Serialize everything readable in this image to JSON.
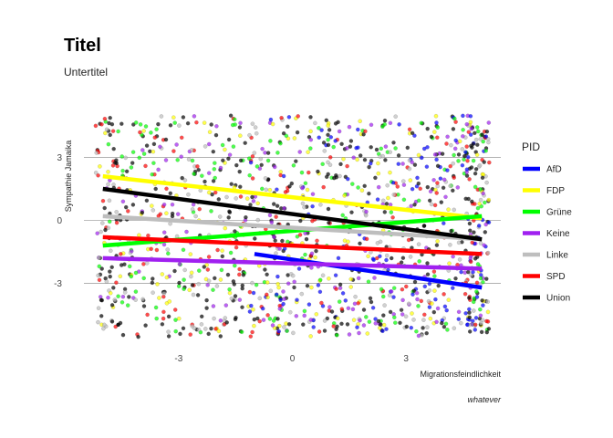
{
  "chart_data": {
    "type": "scatter",
    "title": "Titel",
    "subtitle": "Untertitel",
    "xlabel": "Migrationsfeindlichkeit",
    "ylabel": "Sympathie Jamaika",
    "caption": "whatever",
    "xlim": [
      -5.5,
      5.5
    ],
    "ylim": [
      -5.8,
      5.8
    ],
    "x_ticks": [
      -3,
      0,
      3
    ],
    "y_ticks": [
      -3,
      0,
      3
    ],
    "grid": "horizontal",
    "legend_title": "PID",
    "legend_position": "right",
    "series": [
      {
        "name": "AfD",
        "color": "#0000ff",
        "fit": {
          "x": [
            -1.0,
            5.0
          ],
          "y": [
            -1.6,
            -3.2
          ]
        }
      },
      {
        "name": "FDP",
        "color": "#ffff00",
        "fit": {
          "x": [
            -5.0,
            5.0
          ],
          "y": [
            2.1,
            0.1
          ]
        }
      },
      {
        "name": "Grüne",
        "color": "#00ff00",
        "fit": {
          "x": [
            -5.0,
            5.0
          ],
          "y": [
            -1.2,
            0.2
          ]
        }
      },
      {
        "name": "Keine",
        "color": "#a020f0",
        "fit": {
          "x": [
            -5.0,
            5.0
          ],
          "y": [
            -1.8,
            -2.3
          ]
        }
      },
      {
        "name": "Linke",
        "color": "#bebebe",
        "fit": {
          "x": [
            -5.0,
            5.0
          ],
          "y": [
            0.2,
            -0.9
          ]
        }
      },
      {
        "name": "SPD",
        "color": "#ff0000",
        "fit": {
          "x": [
            -5.0,
            5.0
          ],
          "y": [
            -0.8,
            -1.6
          ]
        }
      },
      {
        "name": "Union",
        "color": "#000000",
        "fit": {
          "x": [
            -5.0,
            5.0
          ],
          "y": [
            1.5,
            -0.9
          ]
        }
      }
    ]
  }
}
